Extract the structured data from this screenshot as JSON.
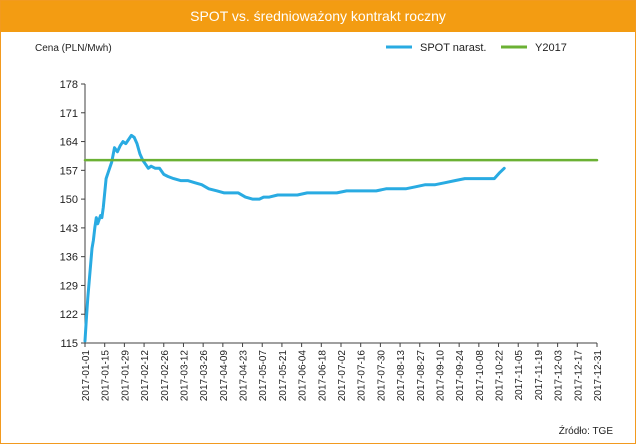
{
  "title": "SPOT vs. średnioważony kontrakt roczny",
  "source": "Źródło: TGE",
  "colors": {
    "title_bg": "#f39c12",
    "spot": "#29abe2",
    "y2017": "#6bb134",
    "axis": "#404040"
  },
  "chart_data": {
    "type": "line",
    "ylabel": "Cena (PLN/Mwh)",
    "xlabel": "",
    "ylim": [
      115,
      178
    ],
    "yticks": [
      115,
      122,
      129,
      136,
      143,
      150,
      157,
      164,
      171,
      178
    ],
    "xlim": [
      "2017-01-01",
      "2017-12-31"
    ],
    "xticks": [
      "2017-01-01",
      "2017-01-15",
      "2017-01-29",
      "2017-02-12",
      "2017-02-26",
      "2017-03-12",
      "2017-03-26",
      "2017-04-09",
      "2017-04-23",
      "2017-05-07",
      "2017-05-21",
      "2017-06-04",
      "2017-06-18",
      "2017-07-02",
      "2017-07-16",
      "2017-07-30",
      "2017-08-13",
      "2017-08-27",
      "2017-09-10",
      "2017-09-24",
      "2017-10-08",
      "2017-10-22",
      "2017-11-05",
      "2017-11-19",
      "2017-12-03",
      "2017-12-17",
      "2017-12-31"
    ],
    "grid": false,
    "legend": "top-right",
    "series": [
      {
        "name": "SPOT narast.",
        "color": "#29abe2",
        "x": [
          "2017-01-01",
          "2017-01-02",
          "2017-01-03",
          "2017-01-04",
          "2017-01-05",
          "2017-01-06",
          "2017-01-07",
          "2017-01-08",
          "2017-01-09",
          "2017-01-10",
          "2017-01-11",
          "2017-01-12",
          "2017-01-13",
          "2017-01-14",
          "2017-01-16",
          "2017-01-18",
          "2017-01-20",
          "2017-01-22",
          "2017-01-24",
          "2017-01-26",
          "2017-01-28",
          "2017-01-30",
          "2017-02-01",
          "2017-02-03",
          "2017-02-05",
          "2017-02-07",
          "2017-02-09",
          "2017-02-11",
          "2017-02-13",
          "2017-02-15",
          "2017-02-17",
          "2017-02-20",
          "2017-02-23",
          "2017-02-26",
          "2017-03-01",
          "2017-03-05",
          "2017-03-10",
          "2017-03-15",
          "2017-03-20",
          "2017-03-25",
          "2017-03-30",
          "2017-04-05",
          "2017-04-10",
          "2017-04-15",
          "2017-04-20",
          "2017-04-25",
          "2017-04-30",
          "2017-05-05",
          "2017-05-08",
          "2017-05-12",
          "2017-05-18",
          "2017-05-25",
          "2017-06-01",
          "2017-06-08",
          "2017-06-15",
          "2017-06-22",
          "2017-06-29",
          "2017-07-06",
          "2017-07-13",
          "2017-07-20",
          "2017-07-27",
          "2017-08-03",
          "2017-08-10",
          "2017-08-17",
          "2017-08-24",
          "2017-08-31",
          "2017-09-07",
          "2017-09-14",
          "2017-09-21",
          "2017-09-28",
          "2017-10-05",
          "2017-10-12",
          "2017-10-19",
          "2017-10-23",
          "2017-10-26"
        ],
        "values": [
          115.5,
          121,
          126,
          130,
          134,
          138,
          140,
          143,
          145.5,
          144,
          145,
          146,
          145.5,
          148,
          155,
          157,
          159,
          162.5,
          161.5,
          163,
          164,
          163.5,
          164.5,
          165.5,
          165,
          163.5,
          161,
          159.5,
          158.5,
          157.5,
          158,
          157.5,
          157.5,
          156,
          155.5,
          155,
          154.5,
          154.5,
          154,
          153.5,
          152.5,
          152,
          151.5,
          151.5,
          151.5,
          150.5,
          150,
          150,
          150.5,
          150.5,
          151,
          151,
          151,
          151.5,
          151.5,
          151.5,
          151.5,
          152,
          152,
          152,
          152,
          152.5,
          152.5,
          152.5,
          153,
          153.5,
          153.5,
          154,
          154.5,
          155,
          155,
          155,
          155,
          156.5,
          157.5
        ]
      },
      {
        "name": "Y2017",
        "color": "#6bb134",
        "x": [
          "2017-01-01",
          "2017-12-31"
        ],
        "values": [
          159.5,
          159.5
        ]
      }
    ]
  }
}
